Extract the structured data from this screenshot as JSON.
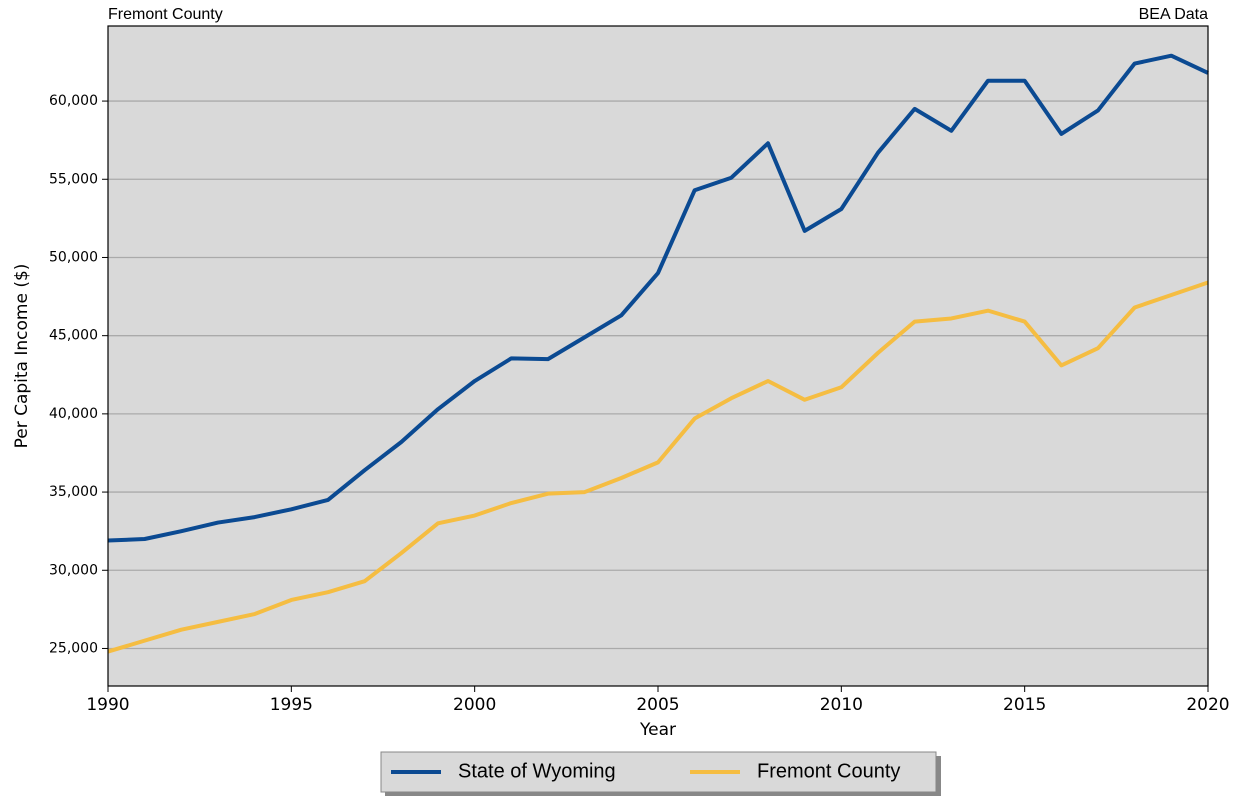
{
  "chart_data": {
    "type": "line",
    "subtitle_left": "Fremont County",
    "subtitle_right": "BEA Data",
    "x_label": "Year",
    "y_label": "Per Capita Income ($)",
    "x": [
      1990,
      1991,
      1992,
      1993,
      1994,
      1995,
      1996,
      1997,
      1998,
      1999,
      2000,
      2001,
      2002,
      2003,
      2004,
      2005,
      2006,
      2007,
      2008,
      2009,
      2010,
      2011,
      2012,
      2013,
      2014,
      2015,
      2016,
      2017,
      2018,
      2019,
      2020
    ],
    "series": [
      {
        "name": "State of Wyoming",
        "color": "#0b4a92",
        "values": [
          31900,
          32000,
          32500,
          33050,
          33400,
          33900,
          34500,
          36400,
          38200,
          40300,
          42100,
          43550,
          43500,
          44900,
          46300,
          49000,
          54300,
          55100,
          57300,
          51700,
          53100,
          56700,
          59500,
          58100,
          61300,
          61300,
          57900,
          59400,
          62400,
          62900,
          61800
        ]
      },
      {
        "name": "Fremont County",
        "color": "#f5bd42",
        "values": [
          24800,
          25500,
          26200,
          26700,
          27200,
          28100,
          28600,
          29300,
          31100,
          33000,
          33500,
          34300,
          34900,
          35000,
          35900,
          36900,
          39700,
          41000,
          42100,
          40900,
          41700,
          43900,
          45900,
          46100,
          46600,
          45900,
          43100,
          44200,
          46800,
          47600,
          48400
        ]
      }
    ],
    "xlim": [
      1990,
      2020
    ],
    "xticks": [
      1990,
      1995,
      2000,
      2005,
      2010,
      2015,
      2020
    ],
    "ylim": [
      22600,
      64800
    ],
    "yticks": [
      {
        "value": 25000,
        "label": "25,000"
      },
      {
        "value": 30000,
        "label": "30,000"
      },
      {
        "value": 35000,
        "label": "35,000"
      },
      {
        "value": 40000,
        "label": "40,000"
      },
      {
        "value": 45000,
        "label": "45,000"
      },
      {
        "value": 50000,
        "label": "50,000"
      },
      {
        "value": 55000,
        "label": "55,000"
      },
      {
        "value": 60000,
        "label": "60,000"
      }
    ],
    "grid": true,
    "legend": "bottom"
  }
}
